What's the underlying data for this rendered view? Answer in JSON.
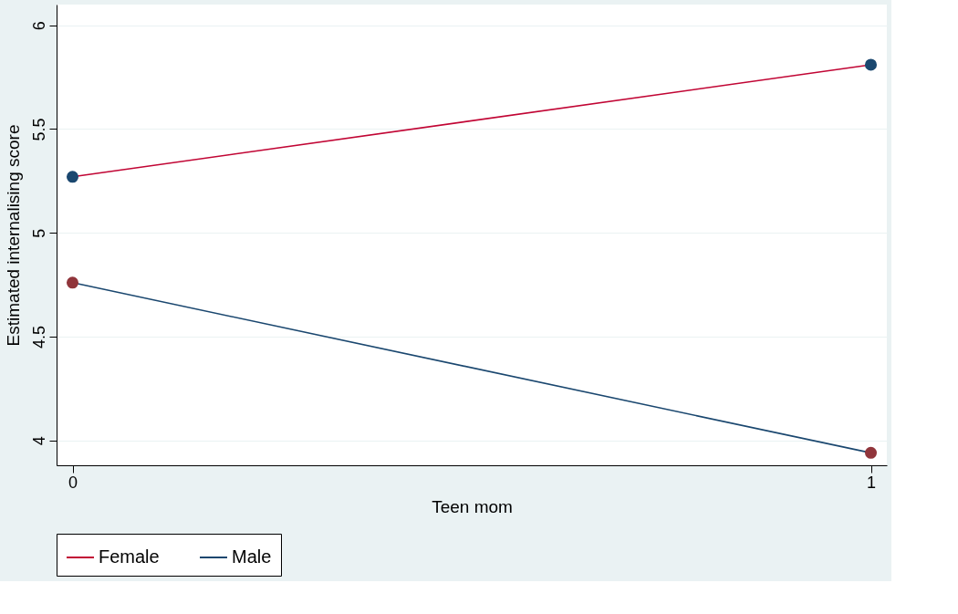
{
  "chart_data": {
    "type": "line",
    "xlabel": "Teen mom",
    "ylabel": "Estimated internalising score",
    "x": [
      0,
      1
    ],
    "xlim": [
      -0.02,
      1.02
    ],
    "xticks": [
      0,
      1
    ],
    "ylim": [
      3.88,
      6.1
    ],
    "yticks": [
      4,
      4.5,
      5,
      5.5,
      6
    ],
    "series": [
      {
        "name": "Female",
        "color": "#c10534",
        "colors": [
          "#1a476f",
          "#1a476f"
        ],
        "values": [
          5.27,
          5.81
        ]
      },
      {
        "name": "Male",
        "color": "#1a476f",
        "colors": [
          "#90353b",
          "#90353b"
        ],
        "values": [
          4.76,
          3.94
        ]
      }
    ],
    "marker": "circle",
    "grid": "y",
    "legend": "bottom"
  }
}
